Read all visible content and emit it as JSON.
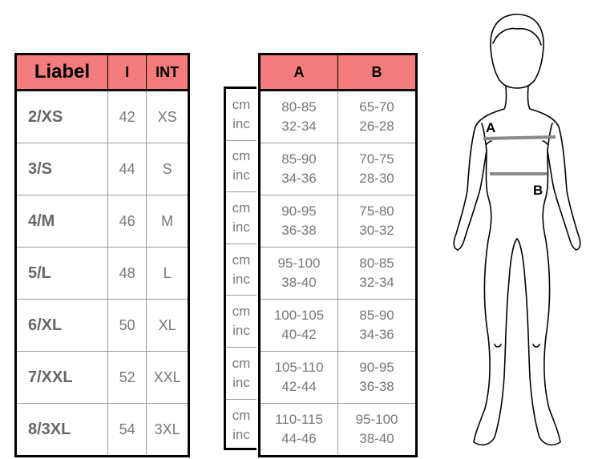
{
  "size_table": {
    "headers": {
      "label": "Liabel",
      "it": "I",
      "int": "INT"
    },
    "rows": [
      {
        "label": "2/XS",
        "it": "42",
        "int": "XS"
      },
      {
        "label": "3/S",
        "it": "44",
        "int": "S"
      },
      {
        "label": "4/M",
        "it": "46",
        "int": "M"
      },
      {
        "label": "5/L",
        "it": "48",
        "int": "L"
      },
      {
        "label": "6/XL",
        "it": "50",
        "int": "XL"
      },
      {
        "label": "7/XXL",
        "it": "52",
        "int": "XXL"
      },
      {
        "label": "8/3XL",
        "it": "54",
        "int": "3XL"
      }
    ]
  },
  "units": {
    "cm": "cm",
    "inc": "inc"
  },
  "measurement_table": {
    "headers": {
      "a": "A",
      "b": "B"
    },
    "rows": [
      {
        "a_cm": "80-85",
        "a_in": "32-34",
        "b_cm": "65-70",
        "b_in": "26-28"
      },
      {
        "a_cm": "85-90",
        "a_in": "34-36",
        "b_cm": "70-75",
        "b_in": "28-30"
      },
      {
        "a_cm": "90-95",
        "a_in": "36-38",
        "b_cm": "75-80",
        "b_in": "30-32"
      },
      {
        "a_cm": "95-100",
        "a_in": "38-40",
        "b_cm": "80-85",
        "b_in": "32-34"
      },
      {
        "a_cm": "100-105",
        "a_in": "40-42",
        "b_cm": "85-90",
        "b_in": "34-36"
      },
      {
        "a_cm": "105-110",
        "a_in": "42-44",
        "b_cm": "90-95",
        "b_in": "36-38"
      },
      {
        "a_cm": "110-115",
        "a_in": "44-46",
        "b_cm": "95-100",
        "b_in": "38-40"
      }
    ]
  },
  "figure": {
    "label_a": "A",
    "label_b": "B"
  },
  "colors": {
    "header_bg": "#f47c7c",
    "text_gray": "#777777",
    "measure_line": "#888888"
  }
}
